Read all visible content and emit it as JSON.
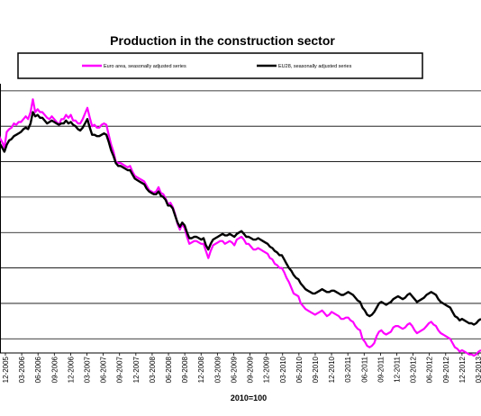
{
  "chart_data": {
    "type": "line",
    "title": "Production in the construction sector",
    "xlabel": "2010=100",
    "ylabel": "",
    "x_ticks": [
      "12-2005",
      "03-2006",
      "06-2006",
      "09-2006",
      "12-2006",
      "03-2007",
      "06-2007",
      "09-2007",
      "12-2007",
      "03-2008",
      "06-2008",
      "09-2008",
      "12-2008",
      "03-2009",
      "06-2009",
      "09-2009",
      "12-2009",
      "03-2010",
      "06-2010",
      "09-2010",
      "12-2010",
      "03-2011",
      "06-2011",
      "09-2011",
      "12-2011",
      "03-2012",
      "06-2012",
      "09-2012",
      "12-2012",
      "03-2013"
    ],
    "ylim": [
      88,
      126
    ],
    "grid": true,
    "legend_position": "top",
    "series": [
      {
        "name": "Euro area, seasonally adjusted series",
        "color": "#ff00ff",
        "values": [
          119.6,
          118.4,
          117.8,
          117.0,
          119.2,
          119.6,
          119.8,
          120.4,
          120.2,
          120.6,
          120.6,
          121.0,
          121.4,
          121.0,
          122.0,
          123.8,
          122.0,
          122.4,
          122.0,
          122.0,
          121.6,
          121.2,
          121.0,
          121.4,
          121.0,
          120.6,
          120.2,
          121.0,
          121.0,
          121.6,
          121.2,
          121.6,
          120.8,
          120.8,
          120.4,
          120.4,
          121.0,
          121.8,
          122.6,
          121.2,
          120.0,
          120.2,
          119.8,
          119.8,
          120.2,
          120.4,
          120.2,
          118.8,
          117.4,
          116.4,
          115.0,
          114.8,
          114.8,
          114.6,
          114.4,
          114.2,
          114.4,
          113.6,
          113.0,
          112.8,
          112.6,
          112.4,
          112.2,
          111.6,
          111.0,
          110.8,
          110.6,
          110.8,
          111.4,
          110.6,
          110.4,
          109.8,
          109.0,
          109.2,
          108.6,
          107.6,
          106.2,
          105.4,
          106.2,
          105.6,
          104.4,
          103.4,
          103.6,
          103.8,
          103.8,
          103.6,
          103.4,
          103.4,
          102.4,
          101.4,
          102.4,
          103.2,
          103.4,
          103.6,
          103.8,
          103.8,
          103.4,
          103.6,
          103.8,
          103.6,
          103.2,
          104.0,
          104.2,
          104.4,
          104.0,
          103.4,
          103.4,
          103.0,
          102.6,
          102.6,
          102.8,
          102.6,
          102.4,
          102.2,
          102.0,
          101.4,
          101.2,
          100.6,
          100.4,
          100.0,
          100.0,
          99.4,
          98.6,
          98.0,
          97.2,
          96.4,
          96.2,
          96.0,
          95.0,
          94.6,
          94.2,
          94.0,
          93.8,
          93.6,
          93.4,
          93.6,
          93.8,
          94.0,
          93.6,
          93.2,
          93.4,
          93.8,
          93.6,
          93.4,
          93.2,
          92.8,
          92.8,
          93.0,
          93.0,
          92.6,
          92.4,
          91.8,
          91.4,
          91.2,
          90.0,
          89.6,
          89.0,
          88.8,
          89.0,
          89.4,
          90.4,
          91.0,
          91.2,
          90.8,
          90.6,
          90.8,
          91.0,
          91.6,
          91.8,
          91.8,
          91.6,
          91.4,
          91.6,
          92.0,
          92.2,
          91.8,
          91.2,
          90.8,
          91.0,
          91.2,
          91.4,
          91.8,
          92.2,
          92.4,
          92.0,
          91.8,
          91.2,
          90.8,
          90.6,
          90.4,
          90.2,
          90.0,
          89.4,
          88.8,
          88.6,
          88.2,
          88.4,
          88.2,
          88.0,
          87.8,
          87.8,
          87.6,
          87.8,
          88.2,
          88.4
        ]
      },
      {
        "name": "EU28, seasonally adjusted series",
        "color": "#000000",
        "values": [
          118.4,
          117.6,
          117.0,
          116.4,
          117.4,
          118.0,
          118.2,
          118.6,
          118.8,
          119.0,
          119.2,
          119.6,
          119.8,
          119.6,
          120.4,
          122.0,
          121.4,
          121.6,
          121.2,
          121.2,
          120.8,
          120.4,
          120.6,
          120.8,
          120.6,
          120.4,
          120.2,
          120.4,
          120.4,
          120.8,
          120.4,
          120.6,
          120.2,
          120.0,
          119.6,
          119.4,
          119.8,
          120.4,
          121.0,
          119.8,
          118.8,
          118.8,
          118.6,
          118.6,
          118.8,
          119.0,
          118.8,
          117.8,
          116.6,
          115.8,
          114.8,
          114.4,
          114.4,
          114.2,
          114.0,
          113.8,
          113.8,
          113.2,
          112.6,
          112.4,
          112.2,
          112.0,
          111.8,
          111.2,
          110.8,
          110.6,
          110.4,
          110.4,
          110.8,
          110.2,
          110.0,
          109.6,
          108.8,
          108.8,
          108.4,
          107.4,
          106.4,
          105.8,
          106.4,
          106.0,
          105.0,
          104.2,
          104.2,
          104.4,
          104.4,
          104.2,
          104.0,
          104.2,
          103.2,
          102.6,
          103.4,
          104.0,
          104.2,
          104.4,
          104.6,
          104.8,
          104.6,
          104.6,
          104.8,
          104.6,
          104.4,
          104.8,
          105.0,
          105.2,
          104.8,
          104.4,
          104.4,
          104.2,
          104.0,
          104.0,
          104.2,
          104.0,
          103.8,
          103.6,
          103.4,
          103.0,
          102.8,
          102.4,
          102.2,
          101.8,
          101.8,
          101.2,
          100.6,
          100.0,
          99.6,
          99.0,
          98.6,
          98.4,
          97.8,
          97.4,
          97.0,
          96.8,
          96.6,
          96.4,
          96.4,
          96.6,
          96.8,
          97.0,
          96.8,
          96.6,
          96.6,
          96.8,
          96.8,
          96.6,
          96.4,
          96.2,
          96.2,
          96.4,
          96.6,
          96.4,
          96.2,
          95.8,
          95.4,
          95.2,
          94.4,
          94.0,
          93.4,
          93.2,
          93.4,
          93.8,
          94.4,
          95.0,
          95.2,
          95.0,
          94.8,
          95.0,
          95.2,
          95.6,
          95.8,
          96.0,
          95.8,
          95.6,
          95.8,
          96.2,
          96.4,
          96.0,
          95.6,
          95.2,
          95.4,
          95.6,
          95.8,
          96.2,
          96.4,
          96.6,
          96.4,
          96.2,
          95.6,
          95.2,
          95.0,
          94.8,
          94.6,
          94.4,
          93.8,
          93.2,
          93.0,
          92.6,
          92.8,
          92.6,
          92.4,
          92.2,
          92.2,
          92.0,
          92.2,
          92.6,
          92.8
        ]
      }
    ]
  }
}
